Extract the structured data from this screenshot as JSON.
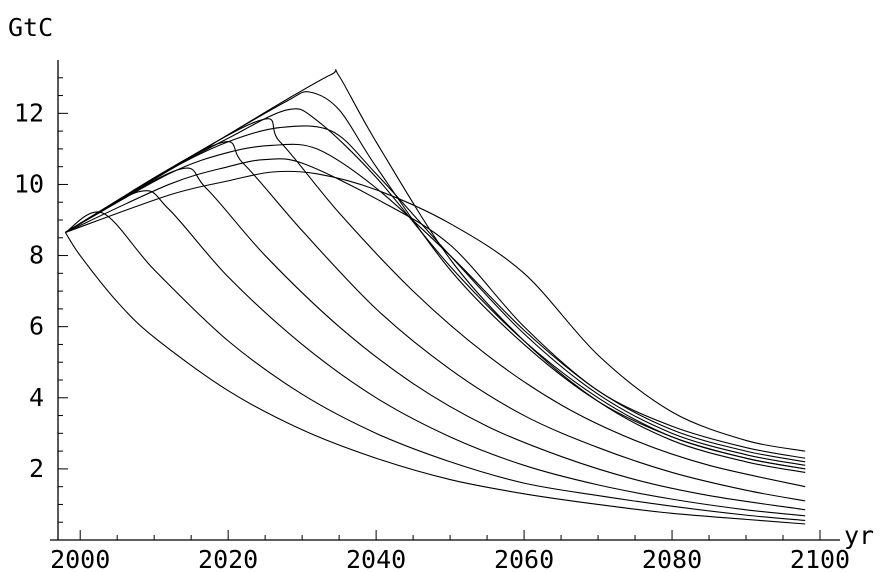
{
  "chart_data": {
    "type": "line",
    "title": "",
    "xlabel": "yr",
    "ylabel": "GtC",
    "xlim": [
      1997,
      2100
    ],
    "ylim": [
      0,
      13.5
    ],
    "x_ticks": [
      2000,
      2020,
      2040,
      2060,
      2080,
      2100
    ],
    "y_ticks": [
      2,
      4,
      6,
      8,
      10,
      12
    ],
    "grid": false,
    "legend": "none",
    "line_color": "#000000",
    "series": [
      {
        "x": [
          1998,
          2000,
          2005,
          2010,
          2020,
          2030,
          2040,
          2050,
          2060,
          2070,
          2080,
          2090,
          2098
        ],
        "values": [
          8.65,
          8.0,
          6.7,
          5.7,
          4.2,
          3.1,
          2.3,
          1.7,
          1.3,
          1.0,
          0.75,
          0.58,
          0.45
        ]
      },
      {
        "x": [
          1998,
          2003,
          2010,
          2020,
          2030,
          2040,
          2050,
          2060,
          2070,
          2080,
          2090,
          2098
        ],
        "values": [
          8.65,
          9.2,
          7.6,
          5.6,
          4.1,
          3.0,
          2.2,
          1.6,
          1.25,
          0.95,
          0.7,
          0.55
        ]
      },
      {
        "x": [
          1998,
          2008,
          2012,
          2020,
          2030,
          2040,
          2050,
          2060,
          2070,
          2080,
          2090,
          2098
        ],
        "values": [
          8.65,
          9.8,
          9.3,
          7.4,
          5.5,
          4.0,
          2.9,
          2.1,
          1.55,
          1.15,
          0.85,
          0.68
        ]
      },
      {
        "x": [
          1998,
          2013,
          2017,
          2025,
          2035,
          2045,
          2055,
          2065,
          2075,
          2085,
          2098
        ],
        "values": [
          8.65,
          10.4,
          9.9,
          8.0,
          6.0,
          4.4,
          3.2,
          2.35,
          1.7,
          1.25,
          0.85
        ]
      },
      {
        "x": [
          1998,
          2018,
          2022,
          2030,
          2040,
          2050,
          2060,
          2070,
          2080,
          2090,
          2098
        ],
        "values": [
          8.65,
          11.1,
          10.6,
          8.7,
          6.5,
          4.8,
          3.5,
          2.6,
          1.9,
          1.4,
          1.1
        ]
      },
      {
        "x": [
          1998,
          2023,
          2027,
          2035,
          2045,
          2055,
          2065,
          2075,
          2085,
          2098
        ],
        "values": [
          8.65,
          11.7,
          11.2,
          9.2,
          7.0,
          5.2,
          3.8,
          2.8,
          2.1,
          1.5
        ]
      },
      {
        "x": [
          1998,
          2012,
          2020,
          2026,
          2032,
          2040,
          2050,
          2060,
          2070,
          2080,
          2090,
          2098
        ],
        "values": [
          8.65,
          9.7,
          10.1,
          10.35,
          10.3,
          9.85,
          8.9,
          7.5,
          5.2,
          3.6,
          2.8,
          2.5
        ]
      },
      {
        "x": [
          1998,
          2012,
          2020,
          2025,
          2030,
          2040,
          2050,
          2060,
          2070,
          2080,
          2090,
          2098
        ],
        "values": [
          8.65,
          10.0,
          10.5,
          10.7,
          10.6,
          9.6,
          8.3,
          6.0,
          4.2,
          3.2,
          2.6,
          2.3
        ]
      },
      {
        "x": [
          1998,
          2012,
          2020,
          2026,
          2032,
          2040,
          2050,
          2060,
          2070,
          2080,
          2090,
          2098
        ],
        "values": [
          8.65,
          10.3,
          10.9,
          11.1,
          11.0,
          9.9,
          8.0,
          5.9,
          4.2,
          3.1,
          2.5,
          2.2
        ]
      },
      {
        "x": [
          1998,
          2012,
          2020,
          2027,
          2034,
          2040,
          2050,
          2060,
          2070,
          2080,
          2090,
          2098
        ],
        "values": [
          8.65,
          10.4,
          11.2,
          11.6,
          11.5,
          10.3,
          8.0,
          5.8,
          4.1,
          3.0,
          2.4,
          2.1
        ]
      },
      {
        "x": [
          1998,
          2012,
          2020,
          2028,
          2032,
          2040,
          2050,
          2060,
          2070,
          2080,
          2090,
          2098
        ],
        "values": [
          8.65,
          10.4,
          11.3,
          12.1,
          11.8,
          10.2,
          7.7,
          5.6,
          4.0,
          2.9,
          2.3,
          2.0
        ]
      },
      {
        "x": [
          1998,
          2012,
          2020,
          2028,
          2031,
          2035,
          2040,
          2050,
          2060,
          2070,
          2080,
          2090,
          2098
        ],
        "values": [
          8.65,
          10.4,
          11.4,
          12.35,
          12.6,
          12.1,
          10.5,
          7.6,
          5.5,
          3.9,
          2.9,
          2.3,
          2.0
        ]
      },
      {
        "x": [
          1998,
          2012,
          2020,
          2028,
          2034,
          2035,
          2040,
          2050,
          2060,
          2070,
          2080,
          2090,
          2098
        ],
        "values": [
          8.65,
          10.4,
          11.4,
          12.4,
          13.1,
          13.05,
          11.2,
          7.9,
          5.6,
          3.9,
          2.8,
          2.2,
          1.9
        ]
      }
    ]
  }
}
